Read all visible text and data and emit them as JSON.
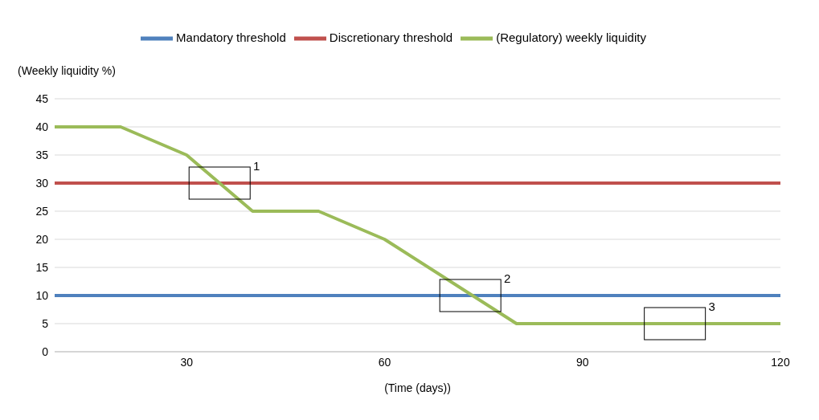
{
  "chart_data": {
    "type": "line",
    "xlabel": "(Time (days))",
    "ylabel": "(Weekly liquidity %)",
    "xlim": [
      10,
      120
    ],
    "xticks": [
      30,
      60,
      90,
      120
    ],
    "ylim": [
      0,
      45
    ],
    "yticks": [
      0,
      5,
      10,
      15,
      20,
      25,
      30,
      35,
      40,
      45
    ],
    "grid": "y",
    "legend": "top",
    "marker": "none",
    "line_style": "solid",
    "series": [
      {
        "name": "Mandatory threshold",
        "color": "#4f81bd",
        "x": [
          10,
          120
        ],
        "values": [
          10,
          10
        ]
      },
      {
        "name": "Discretionary threshold",
        "color": "#c0504d",
        "x": [
          10,
          120
        ],
        "values": [
          30,
          30
        ]
      },
      {
        "name": "(Regulatory) weekly liquidity",
        "color": "#9bbb59",
        "x": [
          10,
          20,
          30,
          40,
          50,
          60,
          80,
          120
        ],
        "values": [
          40,
          40,
          35,
          25,
          25,
          20,
          5,
          5
        ]
      }
    ],
    "annotations": [
      {
        "text": "1",
        "x": 35,
        "y": 30
      },
      {
        "text": "2",
        "x": 73,
        "y": 10
      },
      {
        "text": "3",
        "x": 104,
        "y": 5
      }
    ]
  }
}
